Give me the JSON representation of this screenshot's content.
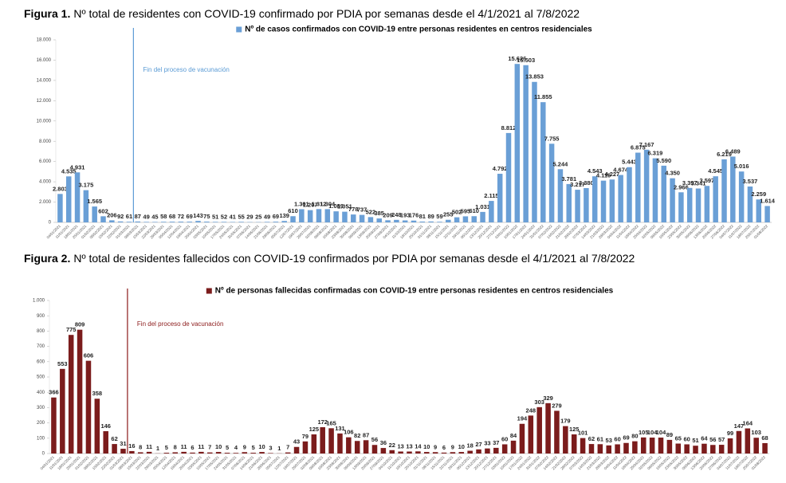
{
  "chart_data": [
    {
      "type": "bar",
      "figure_label": "Figura 1.",
      "title": "Nº total de residentes con COVID-19 confirmado por PDIA por semanas desde el 4/1/2021 al 7/8/2022",
      "annotation": {
        "text": "Fin del proceso de vacunación",
        "category": "08/03/2021",
        "color": "#5b9bd5"
      },
      "categories": [
        "04/01/2021",
        "11/01/2021",
        "18/01/2021",
        "25/01/2021",
        "01/02/2021",
        "08/02/2021",
        "15/02/2021",
        "22/02/2021",
        "01/03/2021",
        "08/03/2021",
        "15/03/2021",
        "22/03/2021",
        "29/03/2021",
        "05/04/2021",
        "12/04/2021",
        "19/04/2021",
        "26/04/2021",
        "03/05/2021",
        "10/05/2021",
        "17/05/2021",
        "24/05/2021",
        "31/05/2021",
        "07/06/2021",
        "14/06/2021",
        "21/06/2021",
        "28/06/2021",
        "05/07/2021",
        "12/07/2021",
        "19/07/2021",
        "26/07/2021",
        "02/08/2021",
        "09/08/2021",
        "16/08/2021",
        "23/08/2021",
        "30/08/2021",
        "06/09/2021",
        "13/09/2021",
        "20/09/2021",
        "27/09/2021",
        "04/10/2021",
        "11/10/2021",
        "18/10/2021",
        "25/10/2021",
        "01/11/2021",
        "08/11/2021",
        "15/11/2021",
        "22/11/2021",
        "29/11/2021",
        "06/12/2021",
        "13/12/2021",
        "20/12/2021",
        "27/12/2021",
        "03/01/2022",
        "10/01/2022",
        "17/01/2022",
        "24/01/2022",
        "31/01/2022",
        "07/02/2022",
        "14/02/2022",
        "21/02/2022",
        "28/02/2022",
        "07/03/2022",
        "14/03/2022",
        "21/03/2022",
        "28/03/2022",
        "04/04/2022",
        "11/04/2022",
        "18/04/2022",
        "25/04/2022",
        "02/05/2022",
        "09/05/2022",
        "16/05/2022",
        "23/05/2022",
        "30/05/2022",
        "06/06/2022",
        "13/06/2022",
        "20/06/2022",
        "27/06/2022",
        "04/07/2022",
        "11/07/2022",
        "18/07/2022",
        "25/07/2022",
        "01/08/2022"
      ],
      "series": [
        {
          "name": "Nº de casos confirmados con COVID-19 entre personas residentes en centros residenciales",
          "color": "#6a9fd6",
          "values": [
            2803,
            4535,
            4931,
            3175,
            1565,
            602,
            206,
            92,
            61,
            87,
            49,
            45,
            58,
            68,
            72,
            69,
            143,
            75,
            51,
            52,
            41,
            55,
            29,
            25,
            49,
            69,
            139,
            610,
            1301,
            1207,
            1312,
            1304,
            1089,
            1051,
            778,
            737,
            522,
            385,
            209,
            248,
            193,
            176,
            81,
            89,
            59,
            255,
            502,
            595,
            610,
            1031,
            2115,
            4792,
            8812,
            15626,
            15503,
            13853,
            11855,
            7755,
            5244,
            3781,
            3217,
            3380,
            4543,
            4115,
            4227,
            4674,
            5443,
            6875,
            7167,
            6319,
            5590,
            4350,
            2966,
            3397,
            3341,
            3597,
            4545,
            6219,
            6489,
            5016,
            3537,
            2259,
            1614
          ],
          "value_labels": [
            "2.803",
            "4.535",
            "4.931",
            "3.175",
            "1.565",
            "602",
            "206",
            "92",
            "61",
            "87",
            "49",
            "45",
            "58",
            "68",
            "72",
            "69",
            "143",
            "75",
            "51",
            "52",
            "41",
            "55",
            "29",
            "25",
            "49",
            "69",
            "139",
            "610",
            "1.301",
            "1.207",
            "1.312",
            "1.304",
            "1.089",
            "1.051",
            "778",
            "737",
            "522",
            "385",
            "209",
            "248",
            "193",
            "176",
            "81",
            "89",
            "59",
            "255",
            "502",
            "595",
            "610",
            "1.031",
            "2.115",
            "4.792",
            "8.812",
            "15.626",
            "15.503",
            "13.853",
            "11.855",
            "7.755",
            "5.244",
            "3.781",
            "3.217",
            "3.380",
            "4.543",
            "4.115",
            "4.227",
            "4.674",
            "5.443",
            "6.875",
            "7.167",
            "6.319",
            "5.590",
            "4.350",
            "2.966",
            "3.397",
            "3.341",
            "3.597",
            "4.545",
            "6.219",
            "6.489",
            "5.016",
            "3.537",
            "2.259",
            "1.614"
          ]
        }
      ],
      "ylim": [
        0,
        18000
      ],
      "yticks": [
        0,
        {
          "value": 2000,
          "label": "2.000"
        },
        {
          "value": 4000,
          "label": "4.000"
        },
        {
          "value": 6000,
          "label": "6.000"
        },
        {
          "value": 8000,
          "label": "8.000"
        },
        {
          "value": 10000,
          "label": "10.000"
        },
        {
          "value": 12000,
          "label": "12.000"
        },
        {
          "value": 14000,
          "label": "14.000"
        },
        {
          "value": 16000,
          "label": "16.000"
        },
        {
          "value": 18000,
          "label": "18.000"
        }
      ],
      "grid": false
    },
    {
      "type": "bar",
      "figure_label": "Figura 2.",
      "title": "Nº total de residentes fallecidos con COVID-19 confirmados por PDIA por semanas desde el 4/1/2021 al 7/8/2022",
      "annotation": {
        "text": "Fin del proceso de vacunación",
        "category": "08/03/2021",
        "color": "#8b1a1a"
      },
      "categories": [
        "04/01/2021",
        "11/01/2021",
        "18/01/2021",
        "25/01/2021",
        "01/02/2021",
        "08/02/2021",
        "15/02/2021",
        "22/02/2021",
        "01/03/2021",
        "08/03/2021",
        "15/03/2021",
        "22/03/2021",
        "29/03/2021",
        "05/04/2021",
        "12/04/2021",
        "19/04/2021",
        "26/04/2021",
        "03/05/2021",
        "10/05/2021",
        "17/05/2021",
        "24/05/2021",
        "31/05/2021",
        "07/06/2021",
        "14/06/2021",
        "21/06/2021",
        "28/06/2021",
        "05/07/2021",
        "12/07/2021",
        "19/07/2021",
        "26/07/2021",
        "02/08/2021",
        "09/08/2021",
        "16/08/2021",
        "23/08/2021",
        "30/08/2021",
        "06/09/2021",
        "13/09/2021",
        "20/09/2021",
        "27/09/2021",
        "04/10/2021",
        "11/10/2021",
        "18/10/2021",
        "25/10/2021",
        "01/11/2021",
        "08/11/2021",
        "15/11/2021",
        "22/11/2021",
        "29/11/2021",
        "06/12/2021",
        "13/12/2021",
        "20/12/2021",
        "27/12/2021",
        "03/01/2022",
        "10/01/2022",
        "17/01/2022",
        "24/01/2022",
        "31/01/2022",
        "07/02/2022",
        "14/02/2022",
        "21/02/2022",
        "28/02/2022",
        "07/03/2022",
        "14/03/2022",
        "21/03/2022",
        "28/03/2022",
        "04/04/2022",
        "11/04/2022",
        "18/04/2022",
        "25/04/2022",
        "02/05/2022",
        "09/05/2022",
        "16/05/2022",
        "23/05/2022",
        "30/05/2022",
        "06/06/2022",
        "13/06/2022",
        "20/06/2022",
        "27/06/2022",
        "04/07/2022",
        "11/07/2022",
        "18/07/2022",
        "25/07/2022",
        "01/08/2022"
      ],
      "series": [
        {
          "name": "Nº de personas fallecidas confirmadas con COVID-19 entre personas residentes en centros residenciales",
          "color": "#7b1c1c",
          "values": [
            366,
            553,
            775,
            809,
            606,
            358,
            146,
            62,
            31,
            16,
            8,
            11,
            1,
            5,
            8,
            11,
            6,
            11,
            7,
            10,
            5,
            4,
            9,
            5,
            10,
            3,
            1,
            7,
            43,
            79,
            125,
            172,
            165,
            131,
            106,
            82,
            87,
            56,
            36,
            22,
            13,
            13,
            14,
            10,
            9,
            6,
            9,
            10,
            18,
            27,
            33,
            37,
            60,
            84,
            194,
            248,
            303,
            329,
            279,
            179,
            125,
            101,
            62,
            61,
            53,
            60,
            69,
            80,
            105,
            104,
            104,
            89,
            65,
            60,
            51,
            64,
            56,
            57,
            99,
            147,
            164,
            103,
            68
          ]
        }
      ],
      "ylim": [
        0,
        1000
      ],
      "yticks": [
        0,
        100,
        200,
        300,
        400,
        500,
        600,
        700,
        800,
        900,
        {
          "value": 1000,
          "label": "1.000"
        }
      ],
      "grid": false
    }
  ]
}
